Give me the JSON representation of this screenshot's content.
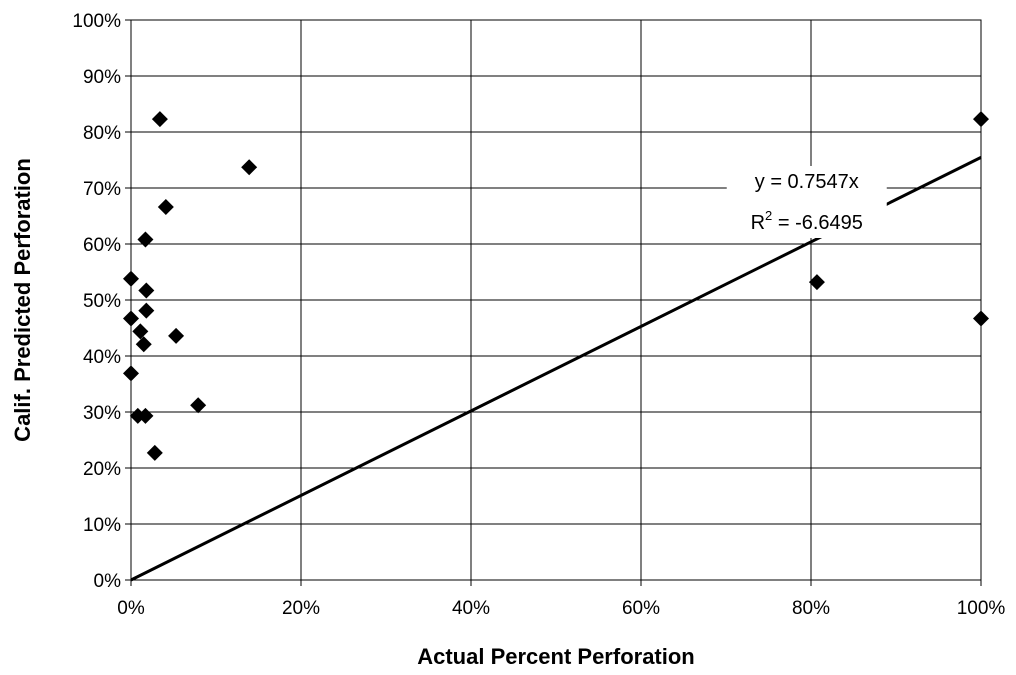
{
  "chart_data": {
    "type": "scatter",
    "title": "",
    "xlabel": "Actual Percent Perforation",
    "ylabel": "Calif. Predicted Perforation",
    "xlim": [
      0,
      100
    ],
    "ylim": [
      0,
      100
    ],
    "x_ticks": [
      "0%",
      "20%",
      "40%",
      "60%",
      "80%",
      "100%"
    ],
    "y_ticks": [
      "0%",
      "10%",
      "20%",
      "30%",
      "40%",
      "50%",
      "60%",
      "70%",
      "80%",
      "90%",
      "100%"
    ],
    "grid": true,
    "marker": "diamond",
    "marker_color": "#000000",
    "points": [
      {
        "x": 3.4,
        "y": 82.3
      },
      {
        "x": 13.9,
        "y": 73.7
      },
      {
        "x": 4.1,
        "y": 66.6
      },
      {
        "x": 1.7,
        "y": 60.8
      },
      {
        "x": 0.0,
        "y": 53.8
      },
      {
        "x": 1.8,
        "y": 51.7
      },
      {
        "x": 0.0,
        "y": 46.7
      },
      {
        "x": 1.8,
        "y": 48.1
      },
      {
        "x": 1.1,
        "y": 44.4
      },
      {
        "x": 1.5,
        "y": 42.1
      },
      {
        "x": 5.3,
        "y": 43.6
      },
      {
        "x": 0.0,
        "y": 36.9
      },
      {
        "x": 7.9,
        "y": 31.2
      },
      {
        "x": 0.8,
        "y": 29.3
      },
      {
        "x": 1.7,
        "y": 29.3
      },
      {
        "x": 2.8,
        "y": 22.7
      },
      {
        "x": 80.7,
        "y": 53.2
      },
      {
        "x": 100.0,
        "y": 82.3
      },
      {
        "x": 100.0,
        "y": 46.7
      }
    ],
    "trendline": {
      "slope": 0.7547,
      "intercept": 0,
      "equation_label": "y = 0.7547x",
      "r2_prefix": "R",
      "r2_sup": "2",
      "r2_value": " = -6.6495"
    }
  }
}
